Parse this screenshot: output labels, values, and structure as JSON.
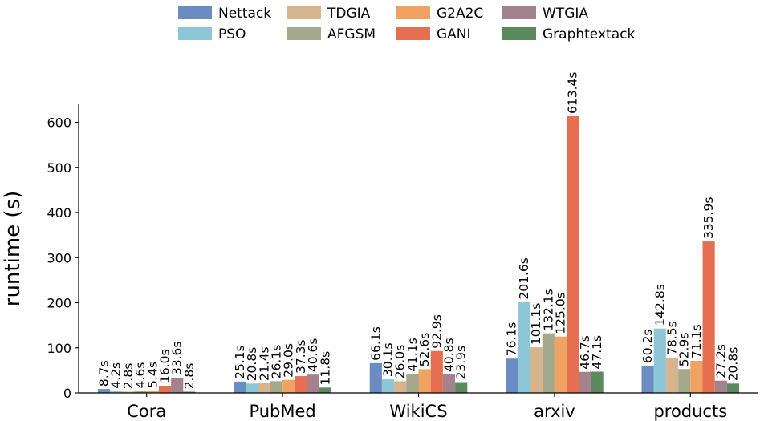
{
  "chart_data": {
    "type": "bar",
    "title": "",
    "xlabel": "",
    "ylabel": "runtime (s)",
    "ylim": [
      0,
      640
    ],
    "yticks": [
      0,
      100,
      200,
      300,
      400,
      500,
      600
    ],
    "grid": false,
    "legend_position": "top-center",
    "categories": [
      "Cora",
      "PubMed",
      "WikiCS",
      "arxiv",
      "products"
    ],
    "series": [
      {
        "name": "Nettack",
        "color": "#6b8cc2",
        "values": [
          8.7,
          25.1,
          66.1,
          76.1,
          60.2
        ],
        "labels": [
          "8.7s",
          "25.1s",
          "66.1s",
          "76.1s",
          "60.2s"
        ]
      },
      {
        "name": "PSO",
        "color": "#8dc6d6",
        "values": [
          4.2,
          20.8,
          30.1,
          201.6,
          142.8
        ],
        "labels": [
          "4.2s",
          "20.8s",
          "30.1s",
          "201.6s",
          "142.8s"
        ]
      },
      {
        "name": "TDGIA",
        "color": "#d6b48e",
        "values": [
          2.8,
          21.4,
          26.0,
          101.1,
          78.5
        ],
        "labels": [
          "2.8s",
          "21.4s",
          "26.0s",
          "101.1s",
          "78.5s"
        ]
      },
      {
        "name": "AFGSM",
        "color": "#a4a88c",
        "values": [
          4.6,
          26.1,
          41.1,
          132.1,
          52.9
        ],
        "labels": [
          "4.6s",
          "26.1s",
          "41.1s",
          "132.1s",
          "52.9s"
        ]
      },
      {
        "name": "G2A2C",
        "color": "#f0a262",
        "values": [
          5.4,
          29.0,
          52.6,
          125.0,
          71.1
        ],
        "labels": [
          "5.4s",
          "29.0s",
          "52.6s",
          "125.0s",
          "71.1s"
        ]
      },
      {
        "name": "GANI",
        "color": "#e76f51",
        "values": [
          16.0,
          37.3,
          92.9,
          613.4,
          335.9
        ],
        "labels": [
          "16.0s",
          "37.3s",
          "92.9s",
          "613.4s",
          "335.9s"
        ]
      },
      {
        "name": "WTGIA",
        "color": "#a3818d",
        "values": [
          33.6,
          40.6,
          40.8,
          46.7,
          27.2
        ],
        "labels": [
          "33.6s",
          "40.6s",
          "40.8s",
          "46.7s",
          "27.2s"
        ]
      },
      {
        "name": "Graphtextack",
        "color": "#5a8a5e",
        "values": [
          2.8,
          11.8,
          23.9,
          47.1,
          20.8
        ],
        "labels": [
          "2.8s",
          "11.8s",
          "23.9s",
          "47.1s",
          "20.8s"
        ]
      }
    ],
    "legend_order": [
      "Nettack",
      "PSO",
      "TDGIA",
      "AFGSM",
      "G2A2C",
      "GANI",
      "WTGIA",
      "Graphtextack"
    ]
  }
}
